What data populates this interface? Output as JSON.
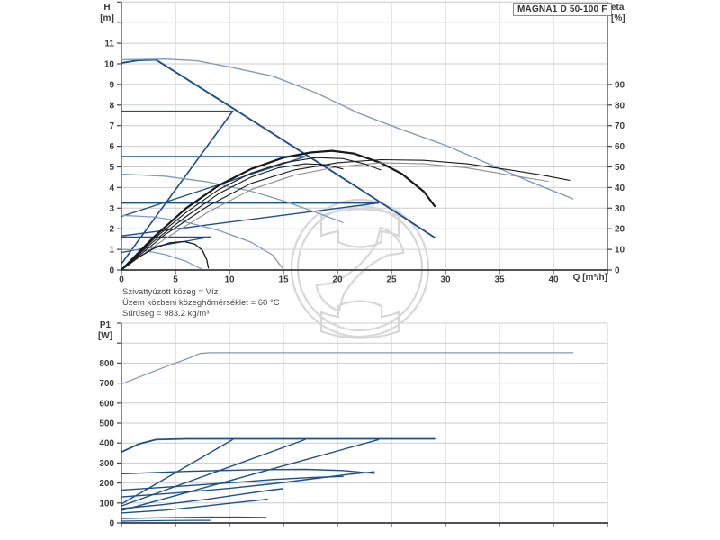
{
  "page": {
    "background": "#ffffff"
  },
  "palette": {
    "dark_blue": "#1d4f8d",
    "light_blue": "#7e9bc2",
    "black": "#1a1a1a",
    "gray": "#8e8e8e",
    "grid": "#cccccc",
    "axis": "#454545",
    "text": "#3c3c3c"
  },
  "title_box": {
    "label": "MAGNA1 D 50-100 F"
  },
  "notes": {
    "line1": "Szivattyúzott közeg = Víz",
    "line2": "Üzem közbeni közeghőmérséklet = 60 °C",
    "line3": "Sűrűség = 983.2 kg/m³"
  },
  "chart_data": [
    {
      "id": "qh",
      "type": "line",
      "title": "MAGNA1 D 50-100 F",
      "x_axis": {
        "label": "Q [m³/h]",
        "min": 0,
        "max": 45,
        "grid_step": 5,
        "ticks": [
          0,
          5,
          10,
          15,
          20,
          25,
          30,
          35,
          40
        ]
      },
      "y_left": {
        "name": "H",
        "unit": "[m]",
        "min": 0,
        "max": 13,
        "grid_step": 1,
        "ticks": [
          0,
          1,
          2,
          3,
          4,
          5,
          6,
          7,
          8,
          9,
          10,
          11
        ]
      },
      "y_right": {
        "name": "eta",
        "unit": "[%]",
        "min": 0,
        "max": 130,
        "ticks": [
          0,
          10,
          20,
          30,
          40,
          50,
          60,
          70,
          80,
          90
        ]
      },
      "series": [
        {
          "name": "single-max-qh",
          "axis": "left",
          "color": "dark_blue",
          "w": 1.9,
          "pts": [
            [
              0,
              10.05
            ],
            [
              1.6,
              10.17
            ],
            [
              3.2,
              10.2
            ],
            [
              10,
              7.95
            ],
            [
              16,
              5.95
            ],
            [
              22,
              3.95
            ],
            [
              26,
              2.6
            ],
            [
              29,
              1.57
            ]
          ]
        },
        {
          "name": "const-press-7-7",
          "axis": "left",
          "color": "dark_blue",
          "w": 1.6,
          "pts": [
            [
              0,
              7.7
            ],
            [
              10.3,
              7.7
            ]
          ]
        },
        {
          "name": "prop-press-7-7",
          "axis": "left",
          "color": "dark_blue",
          "w": 1.6,
          "pts": [
            [
              0,
              0.3
            ],
            [
              10.3,
              7.7
            ]
          ]
        },
        {
          "name": "const-press-5-5",
          "axis": "left",
          "color": "dark_blue",
          "w": 1.6,
          "pts": [
            [
              0,
              5.5
            ],
            [
              17,
              5.5
            ]
          ]
        },
        {
          "name": "prop-press-5-5",
          "axis": "left",
          "color": "dark_blue",
          "w": 1.4,
          "pts": [
            [
              0,
              2.6
            ],
            [
              17,
              5.5
            ]
          ]
        },
        {
          "name": "const-press-3-25",
          "axis": "left",
          "color": "dark_blue",
          "w": 1.6,
          "pts": [
            [
              0,
              3.25
            ],
            [
              23.8,
              3.25
            ]
          ]
        },
        {
          "name": "prop-press-3-25",
          "axis": "left",
          "color": "dark_blue",
          "w": 1.4,
          "pts": [
            [
              0,
              1.65
            ],
            [
              23.8,
              3.25
            ]
          ]
        },
        {
          "name": "const-press-1-6",
          "axis": "left",
          "color": "dark_blue",
          "w": 1.4,
          "pts": [
            [
              0,
              1.6
            ],
            [
              8.2,
              1.6
            ]
          ]
        },
        {
          "name": "prop-press-1-6",
          "axis": "left",
          "color": "dark_blue",
          "w": 1.2,
          "pts": [
            [
              0,
              0.85
            ],
            [
              8.2,
              1.6
            ]
          ]
        },
        {
          "name": "parallel-max-qh",
          "axis": "left",
          "color": "light_blue",
          "w": 1.4,
          "pts": [
            [
              0,
              10.2
            ],
            [
              4,
              10.23
            ],
            [
              7,
              10.15
            ],
            [
              10,
              9.85
            ],
            [
              14,
              9.4
            ],
            [
              18,
              8.6
            ],
            [
              22,
              7.6
            ],
            [
              26,
              6.8
            ],
            [
              30,
              6.05
            ],
            [
              34,
              5.15
            ],
            [
              38,
              4.25
            ],
            [
              41.8,
              3.45
            ]
          ]
        },
        {
          "name": "speed-curve-high",
          "axis": "left",
          "color": "light_blue",
          "w": 1.3,
          "pts": [
            [
              0,
              4.65
            ],
            [
              4,
              4.55
            ],
            [
              8,
              4.27
            ],
            [
              12,
              3.82
            ],
            [
              15,
              3.35
            ],
            [
              18,
              2.8
            ],
            [
              20.5,
              2.3
            ]
          ]
        },
        {
          "name": "speed-curve-mid",
          "axis": "left",
          "color": "light_blue",
          "w": 1.3,
          "pts": [
            [
              0,
              2.65
            ],
            [
              3,
              2.57
            ],
            [
              6,
              2.32
            ],
            [
              9,
              1.92
            ],
            [
              12,
              1.35
            ],
            [
              14,
              0.72
            ],
            [
              14.9,
              0.1
            ]
          ]
        },
        {
          "name": "speed-curve-low",
          "axis": "left",
          "color": "light_blue",
          "w": 1.3,
          "pts": [
            [
              0,
              1.0
            ],
            [
              2,
              0.95
            ],
            [
              4,
              0.76
            ],
            [
              6,
              0.42
            ],
            [
              7.4,
              0.05
            ]
          ]
        },
        {
          "name": "eta-single-max",
          "axis": "right",
          "color": "black",
          "w": 2.2,
          "pts": [
            [
              0,
              0
            ],
            [
              3,
              16
            ],
            [
              6,
              30
            ],
            [
              9,
              41
            ],
            [
              12,
              49
            ],
            [
              15,
              54.5
            ],
            [
              17.5,
              57
            ],
            [
              19.5,
              57.8
            ],
            [
              21.5,
              56.5
            ],
            [
              24,
              52
            ],
            [
              26,
              46.5
            ],
            [
              28,
              38
            ],
            [
              29,
              31
            ]
          ]
        },
        {
          "name": "eta-parallel-max",
          "axis": "right",
          "color": "black",
          "w": 1.1,
          "pts": [
            [
              0,
              0
            ],
            [
              4,
              17
            ],
            [
              8,
              31
            ],
            [
              12,
              42
            ],
            [
              16,
              48.5
            ],
            [
              20,
              52
            ],
            [
              24,
              53.5
            ],
            [
              28,
              53.2
            ],
            [
              32,
              51.5
            ],
            [
              36,
              48.5
            ],
            [
              39,
              46
            ],
            [
              41.5,
              43.5
            ]
          ]
        },
        {
          "name": "eta-parallel-2",
          "axis": "right",
          "color": "gray",
          "w": 1.1,
          "pts": [
            [
              0,
              0
            ],
            [
              4,
              15
            ],
            [
              8,
              28
            ],
            [
              12,
              39
            ],
            [
              16,
              46
            ],
            [
              20,
              50
            ],
            [
              24,
              52
            ],
            [
              28,
              51.5
            ],
            [
              32,
              49.5
            ],
            [
              36,
              46
            ],
            [
              39.5,
              43
            ]
          ]
        },
        {
          "name": "eta-mid-1",
          "axis": "right",
          "color": "black",
          "w": 1.1,
          "pts": [
            [
              0,
              0
            ],
            [
              3,
              15
            ],
            [
              6,
              28
            ],
            [
              9,
              39
            ],
            [
              12,
              47
            ],
            [
              15,
              52
            ],
            [
              18,
              54.5
            ],
            [
              20.5,
              54
            ],
            [
              22.5,
              51.5
            ],
            [
              24,
              48.5
            ]
          ]
        },
        {
          "name": "eta-mid-2",
          "axis": "right",
          "color": "black",
          "w": 1.1,
          "pts": [
            [
              0,
              0
            ],
            [
              3,
              14
            ],
            [
              6,
              26
            ],
            [
              9,
              37
            ],
            [
              12,
              45
            ],
            [
              14.5,
              49.5
            ],
            [
              17,
              51.5
            ],
            [
              19,
              51
            ],
            [
              20.5,
              49
            ]
          ]
        },
        {
          "name": "eta-min",
          "axis": "right",
          "color": "black",
          "w": 1.3,
          "pts": [
            [
              0,
              0
            ],
            [
              1.5,
              6
            ],
            [
              3,
              10.5
            ],
            [
              4.5,
              13.2
            ],
            [
              5.8,
              13.8
            ],
            [
              6.8,
              12.5
            ],
            [
              7.5,
              9.5
            ],
            [
              7.9,
              5
            ],
            [
              8.05,
              1
            ]
          ]
        }
      ]
    },
    {
      "id": "p1",
      "type": "line",
      "x_axis": {
        "min": 0,
        "max": 45,
        "grid_step": 5,
        "ticks": []
      },
      "y_left": {
        "name": "P1",
        "unit": "[W]",
        "min": 0,
        "max": 1000,
        "grid_step": 100,
        "ticks": [
          0,
          100,
          200,
          300,
          400,
          500,
          600,
          700,
          800
        ]
      },
      "series": [
        {
          "name": "p1-parallel-max",
          "axis": "left",
          "color": "light_blue",
          "w": 1.3,
          "pts": [
            [
              0,
              695
            ],
            [
              2,
              738
            ],
            [
              4,
              780
            ],
            [
              6,
              820
            ],
            [
              7.3,
              848
            ],
            [
              8.2,
              852
            ],
            [
              41.8,
              852
            ]
          ]
        },
        {
          "name": "p1-single-max",
          "axis": "left",
          "color": "dark_blue",
          "w": 1.8,
          "pts": [
            [
              0,
              355
            ],
            [
              1.6,
              395
            ],
            [
              3.2,
              417
            ],
            [
              6,
              421
            ],
            [
              29,
              421
            ]
          ]
        },
        {
          "name": "p1-prop-7-7",
          "axis": "left",
          "color": "dark_blue",
          "w": 1.4,
          "pts": [
            [
              0,
              95
            ],
            [
              10.3,
              417
            ]
          ]
        },
        {
          "name": "p1-prop-5-5",
          "axis": "left",
          "color": "dark_blue",
          "w": 1.4,
          "pts": [
            [
              0,
              85
            ],
            [
              17,
              417
            ]
          ]
        },
        {
          "name": "p1-prop-3-25",
          "axis": "left",
          "color": "dark_blue",
          "w": 1.4,
          "pts": [
            [
              0,
              62
            ],
            [
              23.8,
              417
            ]
          ]
        },
        {
          "name": "p1-ctrl-high",
          "axis": "left",
          "color": "dark_blue",
          "w": 1.4,
          "pts": [
            [
              0,
              246
            ],
            [
              6,
              258
            ],
            [
              12,
              266
            ],
            [
              17,
              268
            ],
            [
              20.5,
              262
            ],
            [
              23.4,
              248
            ]
          ]
        },
        {
          "name": "p1-ctrl-2",
          "axis": "left",
          "color": "dark_blue",
          "w": 1.4,
          "pts": [
            [
              0,
              165
            ],
            [
              5,
              182
            ],
            [
              10,
              201
            ],
            [
              14,
              217
            ],
            [
              17.5,
              227
            ],
            [
              20.5,
              233
            ]
          ]
        },
        {
          "name": "p1-ctrl-3",
          "axis": "left",
          "color": "dark_blue",
          "w": 1.4,
          "pts": [
            [
              0,
              130
            ],
            [
              5,
              150
            ],
            [
              10,
              173
            ],
            [
              14,
              196
            ],
            [
              18,
              223
            ],
            [
              21,
              243
            ],
            [
              23.4,
              256
            ]
          ]
        },
        {
          "name": "p1-low-1",
          "axis": "left",
          "color": "dark_blue",
          "w": 1.4,
          "pts": [
            [
              0,
              72
            ],
            [
              4,
              93
            ],
            [
              8,
              119
            ],
            [
              11,
              143
            ],
            [
              13.5,
              162
            ],
            [
              14.9,
              171
            ]
          ]
        },
        {
          "name": "p1-low-2",
          "axis": "left",
          "color": "dark_blue",
          "w": 1.4,
          "pts": [
            [
              0,
              50
            ],
            [
              4,
              64
            ],
            [
              7,
              80
            ],
            [
              10,
              98
            ],
            [
              12.5,
              112
            ],
            [
              13.5,
              119
            ]
          ]
        },
        {
          "name": "p1-min",
          "axis": "left",
          "color": "dark_blue",
          "w": 1.4,
          "pts": [
            [
              0,
              22
            ],
            [
              4,
              26
            ],
            [
              8,
              29
            ],
            [
              11,
              29
            ],
            [
              13.4,
              27
            ]
          ]
        },
        {
          "name": "p1-tiny",
          "axis": "left",
          "color": "dark_blue",
          "w": 1.2,
          "pts": [
            [
              0,
              9
            ],
            [
              4,
              12
            ],
            [
              7,
              13
            ],
            [
              8.2,
              13
            ]
          ]
        }
      ]
    }
  ]
}
